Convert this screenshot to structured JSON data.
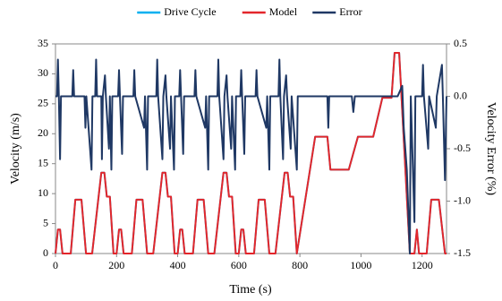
{
  "chart_data": {
    "type": "line",
    "xlabel": "Time (s)",
    "ylabel": "Velocity (m/s)",
    "y2label": "Velocity Error (%)",
    "xlim": [
      0,
      1280
    ],
    "xticks": [
      0,
      200,
      400,
      600,
      800,
      1000,
      1200
    ],
    "ylim": [
      0,
      35
    ],
    "yticks": [
      0,
      5,
      10,
      15,
      20,
      25,
      30,
      35
    ],
    "y2lim": [
      -1.5,
      0.5
    ],
    "y2ticks": [
      -1.5,
      {
        "value": -1.0,
        "label": "-1.0"
      },
      -0.5,
      {
        "value": 0.0,
        "label": "0.0"
      },
      0.5
    ],
    "grid": false,
    "legend": "top",
    "series": [
      {
        "name": "Drive Cycle",
        "color": "#00b0f0",
        "x": [
          0,
          8,
          15,
          23,
          50,
          65,
          85,
          100,
          120,
          150,
          160,
          168,
          178,
          190,
          200,
          208,
          215,
          223,
          250,
          265,
          285,
          300,
          320,
          350,
          360,
          368,
          378,
          390,
          400,
          408,
          415,
          423,
          450,
          465,
          485,
          500,
          520,
          550,
          560,
          568,
          578,
          590,
          600,
          608,
          615,
          623,
          650,
          665,
          685,
          700,
          720,
          750,
          760,
          768,
          778,
          790,
          850,
          890,
          900,
          960,
          990,
          1040,
          1070,
          1100,
          1110,
          1125,
          1160,
          1175,
          1183,
          1190,
          1215,
          1230,
          1255,
          1275,
          1280
        ],
        "values": [
          0,
          4,
          4,
          0,
          0,
          9,
          9,
          0,
          0,
          13.5,
          13.5,
          9.5,
          9.5,
          0,
          0,
          4,
          4,
          0,
          0,
          9,
          9,
          0,
          0,
          13.5,
          13.5,
          9.5,
          9.5,
          0,
          0,
          4,
          4,
          0,
          0,
          9,
          9,
          0,
          0,
          13.5,
          13.5,
          9.5,
          9.5,
          0,
          0,
          4,
          4,
          0,
          0,
          9,
          9,
          0,
          0,
          13.5,
          13.5,
          9.5,
          9.5,
          0,
          19.5,
          19.5,
          14,
          14,
          19.5,
          19.5,
          26,
          26,
          33.5,
          33.5,
          0,
          0,
          4,
          0,
          0,
          9,
          9,
          0,
          0
        ]
      },
      {
        "name": "Model",
        "color": "#e3262b",
        "x": [
          0,
          8,
          15,
          23,
          50,
          65,
          85,
          100,
          120,
          150,
          160,
          168,
          178,
          190,
          200,
          208,
          215,
          223,
          250,
          265,
          285,
          300,
          320,
          350,
          360,
          368,
          378,
          390,
          400,
          408,
          415,
          423,
          450,
          465,
          485,
          500,
          520,
          550,
          560,
          568,
          578,
          590,
          600,
          608,
          615,
          623,
          650,
          665,
          685,
          700,
          720,
          750,
          760,
          768,
          778,
          790,
          850,
          890,
          900,
          960,
          990,
          1040,
          1070,
          1100,
          1110,
          1125,
          1160,
          1175,
          1183,
          1190,
          1215,
          1230,
          1255,
          1275,
          1280
        ],
        "values": [
          0,
          4,
          4,
          0,
          0,
          9,
          9,
          0,
          0,
          13.5,
          13.5,
          9.5,
          9.5,
          0,
          0,
          4,
          4,
          0,
          0,
          9,
          9,
          0,
          0,
          13.5,
          13.5,
          9.5,
          9.5,
          0,
          0,
          4,
          4,
          0,
          0,
          9,
          9,
          0,
          0,
          13.5,
          13.5,
          9.5,
          9.5,
          0,
          0,
          4,
          4,
          0,
          0,
          9,
          9,
          0,
          0,
          13.5,
          13.5,
          9.5,
          9.5,
          0,
          19.5,
          19.5,
          14,
          14,
          19.5,
          19.5,
          26,
          26,
          33.5,
          33.5,
          0,
          0,
          4,
          0,
          0,
          9,
          9,
          0,
          0
        ]
      },
      {
        "name": "Error",
        "color": "#1f3864",
        "axis": "y2",
        "x": [
          0,
          5,
          8,
          11,
          15,
          18,
          55,
          58,
          61,
          95,
          98,
          101,
          118,
          121,
          130,
          133,
          136,
          150,
          152,
          155,
          162,
          165,
          175,
          178,
          183,
          186,
          205,
          208,
          211,
          218,
          221,
          255,
          258,
          261,
          290,
          293,
          300,
          303,
          330,
          333,
          336,
          350,
          353,
          360,
          363,
          375,
          378,
          388,
          391,
          405,
          408,
          411,
          418,
          421,
          455,
          458,
          461,
          490,
          493,
          500,
          503,
          530,
          533,
          536,
          550,
          553,
          560,
          563,
          575,
          578,
          588,
          591,
          605,
          608,
          611,
          618,
          621,
          655,
          658,
          661,
          690,
          693,
          700,
          703,
          730,
          733,
          736,
          745,
          748,
          755,
          758,
          770,
          773,
          790,
          793,
          890,
          893,
          896,
          970,
          975,
          980,
          1120,
          1135,
          1140,
          1150,
          1160,
          1163,
          1175,
          1178,
          1200,
          1203,
          1206,
          1220,
          1223,
          1245,
          1248,
          1265,
          1268,
          1275,
          1280
        ],
        "values": [
          0,
          0,
          0.35,
          0,
          -0.6,
          0,
          0,
          0.25,
          0,
          0,
          -0.3,
          0,
          -0.7,
          0,
          0,
          0.35,
          0,
          0,
          -0.6,
          0,
          0.2,
          0,
          -0.5,
          0,
          -0.7,
          0,
          0,
          0.25,
          0,
          -0.55,
          0,
          0,
          0.25,
          0,
          -0.3,
          0,
          -0.7,
          0,
          0,
          0.35,
          0,
          -0.6,
          0,
          0.2,
          0,
          -0.5,
          0,
          -0.7,
          0,
          0,
          0.25,
          0,
          -0.55,
          0,
          0,
          0.25,
          0,
          -0.3,
          0,
          -0.7,
          0,
          0,
          0.35,
          0,
          -0.6,
          0,
          0.2,
          0,
          -0.5,
          0,
          -0.7,
          0,
          0,
          0.25,
          0,
          -0.55,
          0,
          0,
          0.25,
          0,
          -0.3,
          0,
          -0.7,
          0,
          0,
          0.35,
          0,
          -0.6,
          0,
          0.2,
          0,
          -0.5,
          0,
          -0.7,
          0,
          0,
          -0.3,
          0,
          0,
          -0.15,
          0,
          0,
          0.1,
          -0.3,
          -0.7,
          -1.5,
          0,
          -1.2,
          0,
          0,
          0.3,
          0,
          -0.5,
          0,
          -0.3,
          0,
          0.3,
          0,
          -0.8,
          0
        ]
      }
    ]
  }
}
